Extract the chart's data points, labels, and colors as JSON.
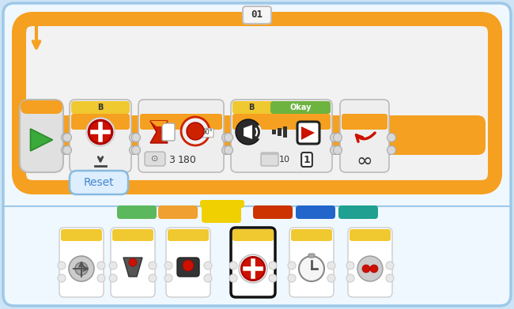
{
  "bg_color": "#cce4f5",
  "card_bg": "#f0f8ff",
  "card_border": "#9ec8e8",
  "orange": "#f5a020",
  "yellow": "#f0c830",
  "green": "#6db33f",
  "red": "#cc1100",
  "gray_light": "#e8e8e8",
  "gray_med": "#cccccc",
  "gray_dark": "#888888",
  "white": "#ffffff",
  "tab_green": "#5cb85c",
  "tab_orange": "#f0a030",
  "tab_yellow": "#f0d000",
  "tab_red": "#cc3300",
  "tab_blue": "#2266cc",
  "tab_teal": "#20a090",
  "loop_label": "01",
  "reset_text": "Reset",
  "b_label": "B",
  "okay_label": "Okay",
  "figsize": [
    6.5,
    3.91
  ],
  "dpi": 100
}
